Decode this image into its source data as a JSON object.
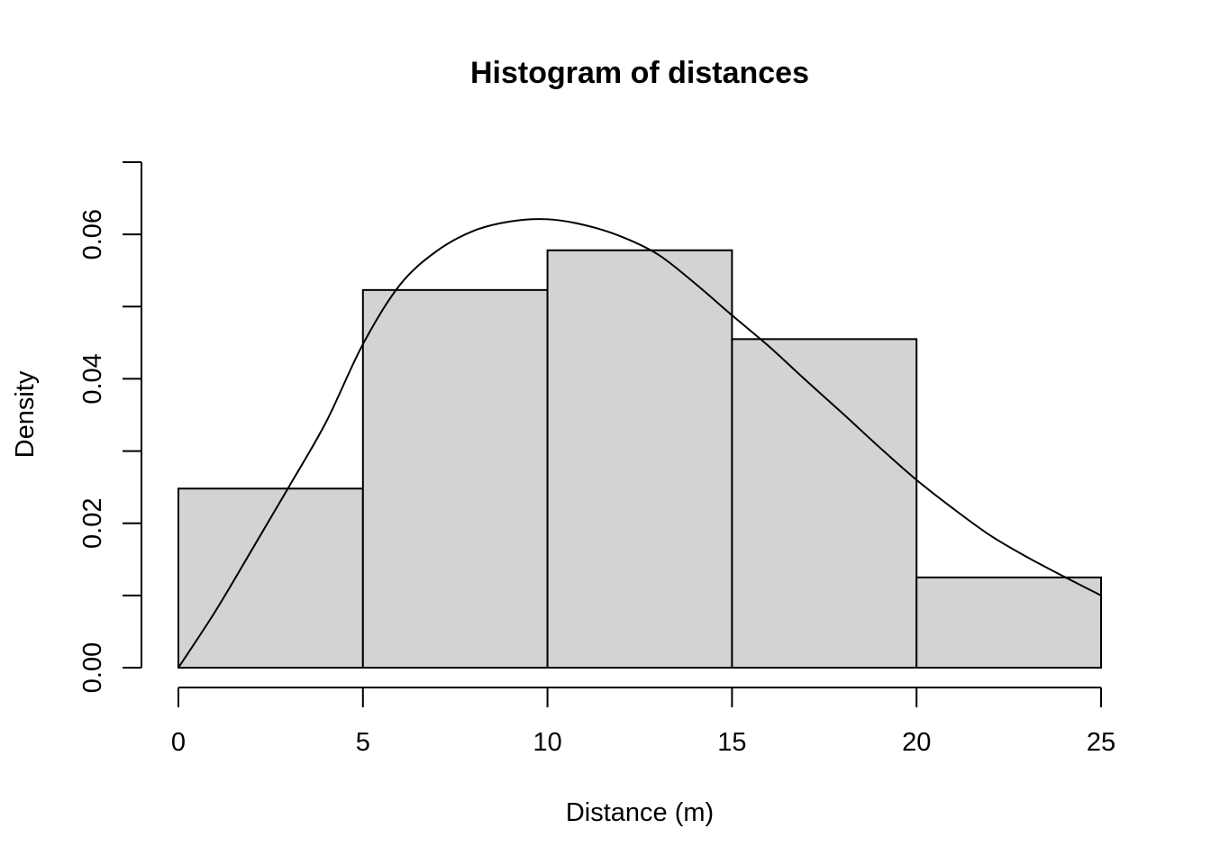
{
  "chart_data": {
    "type": "bar",
    "title": "Histogram of distances",
    "xlabel": "Distance (m)",
    "ylabel": "Density",
    "bins": [
      {
        "from": 0,
        "to": 5,
        "density": 0.0248
      },
      {
        "from": 5,
        "to": 10,
        "density": 0.0523
      },
      {
        "from": 10,
        "to": 15,
        "density": 0.0578
      },
      {
        "from": 15,
        "to": 20,
        "density": 0.0455
      },
      {
        "from": 20,
        "to": 25,
        "density": 0.0125
      }
    ],
    "density_curve": {
      "x": [
        0,
        1,
        2,
        3,
        4,
        5,
        6,
        7,
        8,
        9,
        10,
        11,
        12,
        13,
        14,
        15,
        16,
        17,
        18,
        19,
        20,
        21,
        22,
        23,
        24,
        25
      ],
      "y": [
        0.0,
        0.0078,
        0.0164,
        0.0251,
        0.034,
        0.0448,
        0.053,
        0.0577,
        0.0605,
        0.0618,
        0.0621,
        0.0613,
        0.0597,
        0.0572,
        0.0532,
        0.0488,
        0.0445,
        0.0398,
        0.0352,
        0.0305,
        0.026,
        0.022,
        0.0183,
        0.0153,
        0.0126,
        0.01
      ]
    },
    "xlim": [
      0,
      25
    ],
    "ylim": [
      0,
      0.07
    ],
    "xticks": [
      0,
      5,
      10,
      15,
      20,
      25
    ],
    "xtick_labels": [
      "0",
      "5",
      "10",
      "15",
      "20",
      "25"
    ],
    "yticks": [
      0,
      0.01,
      0.02,
      0.03,
      0.04,
      0.05,
      0.06,
      0.07
    ],
    "ytick_labels": [
      "0.00",
      "",
      "0.02",
      "",
      "0.04",
      "",
      "0.06",
      ""
    ],
    "bar_color": "#d3d3d3",
    "line_color": "#000000",
    "grid": false
  }
}
